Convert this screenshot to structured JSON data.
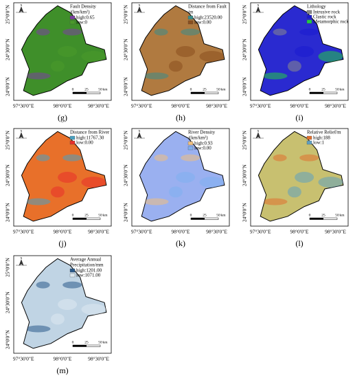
{
  "map_frame": {
    "lat_labels": [
      "25°0'0\"N",
      "24°30'0\"N",
      "24°0'0\"N"
    ],
    "lon_labels": [
      "97°30'0\"E",
      "98°0'0\"E",
      "98°30'0\"E"
    ],
    "scale_labels": [
      "0",
      "25",
      "50",
      "km"
    ],
    "north": "N"
  },
  "panels": [
    {
      "label": "(g)",
      "title": [
        "Fault Density",
        "/(km/km²)"
      ],
      "fill": "#3f8f2a",
      "legend": [
        {
          "label": "high:0.65",
          "color": "#7b3fa0"
        },
        {
          "label": "low:0",
          "color": "#4a9a2a"
        }
      ]
    },
    {
      "label": "(h)",
      "title": [
        "Distance from Fault",
        "/m"
      ],
      "fill": "#b07a40",
      "legend": [
        {
          "label": "high:23520.00",
          "color": "#3a8d8a"
        },
        {
          "label": "low:0.00",
          "color": "#8b4f1e"
        }
      ]
    },
    {
      "label": "(i)",
      "title": [
        "Lithology"
      ],
      "fill": "#2a2ad0",
      "legend": [
        {
          "label": "Intrusive rock",
          "color": "#8a8a8a"
        },
        {
          "label": "Clastic rock",
          "color": "#1a1ad0"
        },
        {
          "label": "Metamorphic rock",
          "color": "#22cc44"
        }
      ]
    },
    {
      "label": "(j)",
      "title": [
        "Distance from River"
      ],
      "fill": "#e8702a",
      "legend": [
        {
          "label": "high:11767.30",
          "color": "#4aa0c0"
        },
        {
          "label": "low:0.00",
          "color": "#e8302a"
        }
      ]
    },
    {
      "label": "(k)",
      "title": [
        "River Density",
        "/(km/km²)"
      ],
      "fill": "#9ab0f0",
      "legend": [
        {
          "label": "high:0.93",
          "color": "#f0c080"
        },
        {
          "label": "low:0.00",
          "color": "#80b0f0"
        }
      ]
    },
    {
      "label": "(l)",
      "title": [
        "Relative Relief/m"
      ],
      "fill": "#c8c070",
      "legend": [
        {
          "label": "high:188",
          "color": "#e07030"
        },
        {
          "label": "low:1",
          "color": "#60a0c0"
        }
      ]
    },
    {
      "label": "(m)",
      "title": [
        "Average Annual",
        "Precipitation/mm"
      ],
      "fill": "#c0d4e4",
      "legend": [
        {
          "label": "high:1201.00",
          "color": "#2a5a8a"
        },
        {
          "label": "low:1071.00",
          "color": "#dde8f0"
        }
      ]
    }
  ]
}
